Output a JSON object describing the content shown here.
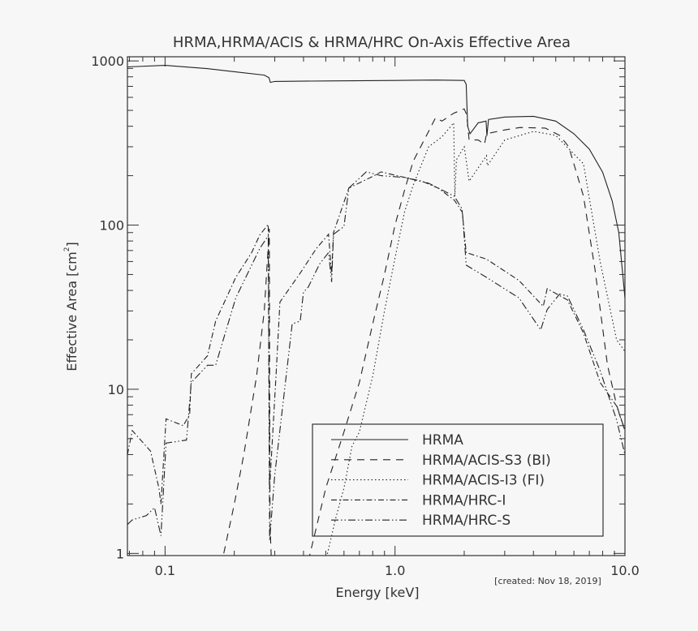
{
  "chart_data": {
    "type": "line",
    "title": "HRMA,HRMA/ACIS & HRMA/HRC On-Axis Effective Area",
    "xlabel": "Energy [keV]",
    "ylabel": "Effective Area [cm",
    "ylabel_sup": "2",
    "ylabel_end": "]",
    "xscale": "log",
    "yscale": "log",
    "xlim": [
      0.0686,
      10.0
    ],
    "ylim": [
      0.97,
      1060
    ],
    "xticks": [
      {
        "v": 0.1,
        "label": "0.1"
      },
      {
        "v": 1.0,
        "label": "1.0"
      },
      {
        "v": 10.0,
        "label": "10.0"
      }
    ],
    "yticks": [
      {
        "v": 1,
        "label": "1"
      },
      {
        "v": 10,
        "label": "10"
      },
      {
        "v": 100,
        "label": "100"
      },
      {
        "v": 1000,
        "label": "1000"
      }
    ],
    "annotation": "[created: Nov 18, 2019]",
    "legend_position": "bottom-right",
    "series": [
      {
        "name": "HRMA",
        "style": "solid",
        "points": [
          [
            0.0686,
            920
          ],
          [
            0.1,
            940
          ],
          [
            0.15,
            900
          ],
          [
            0.2,
            860
          ],
          [
            0.27,
            820
          ],
          [
            0.283,
            790
          ],
          [
            0.287,
            740
          ],
          [
            0.3,
            750
          ],
          [
            0.5,
            755
          ],
          [
            1.0,
            760
          ],
          [
            1.5,
            765
          ],
          [
            2.0,
            760
          ],
          [
            2.04,
            720
          ],
          [
            2.07,
            400
          ],
          [
            2.12,
            360
          ],
          [
            2.3,
            420
          ],
          [
            2.49,
            430
          ],
          [
            2.51,
            350
          ],
          [
            2.55,
            440
          ],
          [
            3.0,
            455
          ],
          [
            4.0,
            460
          ],
          [
            5.0,
            430
          ],
          [
            6.0,
            360
          ],
          [
            7.0,
            290
          ],
          [
            8.0,
            210
          ],
          [
            8.8,
            140
          ],
          [
            9.4,
            90
          ],
          [
            10,
            36
          ]
        ]
      },
      {
        "name": "HRMA/ACIS-S3 (BI)",
        "style": "dashed",
        "points": [
          [
            0.18,
            1
          ],
          [
            0.2,
            2.0
          ],
          [
            0.22,
            4
          ],
          [
            0.25,
            12
          ],
          [
            0.27,
            30
          ],
          [
            0.284,
            95
          ],
          [
            0.286,
            1.5
          ],
          [
            0.29,
            0.9
          ],
          null,
          [
            0.42,
            0.9
          ],
          [
            0.5,
            2.5
          ],
          [
            0.6,
            5.5
          ],
          [
            0.7,
            11
          ],
          [
            0.8,
            25
          ],
          [
            0.9,
            50
          ],
          [
            1.0,
            100
          ],
          [
            1.1,
            163
          ],
          [
            1.2,
            245
          ],
          [
            1.4,
            372
          ],
          [
            1.5,
            450
          ],
          [
            1.6,
            430
          ],
          [
            1.8,
            480
          ],
          [
            2.0,
            510
          ],
          [
            2.05,
            470
          ],
          [
            2.1,
            330
          ],
          [
            2.3,
            330
          ],
          [
            2.45,
            310
          ],
          [
            2.5,
            360
          ],
          [
            3.0,
            380
          ],
          [
            3.5,
            393
          ],
          [
            4.5,
            390
          ],
          [
            5.2,
            352
          ],
          [
            5.7,
            300
          ],
          [
            6.6,
            150
          ],
          [
            7.4,
            54
          ],
          [
            8.4,
            14
          ],
          [
            9.2,
            8
          ],
          [
            10,
            5.6
          ]
        ]
      },
      {
        "name": "HRMA/ACIS-I3 (FI)",
        "style": "dotted",
        "points": [
          [
            0.5,
            0.9
          ],
          [
            0.55,
            1.6
          ],
          [
            0.6,
            2.5
          ],
          [
            0.65,
            4.5
          ],
          [
            0.7,
            5.5
          ],
          [
            0.8,
            12
          ],
          [
            0.9,
            30
          ],
          [
            1.0,
            63
          ],
          [
            1.1,
            120
          ],
          [
            1.2,
            175
          ],
          [
            1.4,
            300
          ],
          [
            1.6,
            345
          ],
          [
            1.8,
            420
          ],
          [
            1.82,
            150
          ],
          [
            1.85,
            250
          ],
          [
            2.0,
            300
          ],
          [
            2.1,
            185
          ],
          [
            2.5,
            265
          ],
          [
            2.52,
            230
          ],
          [
            3.0,
            330
          ],
          [
            4.0,
            372
          ],
          [
            5.0,
            352
          ],
          [
            6.6,
            236
          ],
          [
            7.8,
            60
          ],
          [
            9.2,
            20
          ],
          [
            10,
            17
          ]
        ]
      },
      {
        "name": "HRMA/HRC-I",
        "style": "dashdot",
        "points": [
          [
            0.0686,
            4
          ],
          [
            0.072,
            5.6
          ],
          [
            0.0865,
            4.2
          ],
          [
            0.094,
            2.5
          ],
          [
            0.096,
            2.0
          ],
          [
            0.101,
            6.6
          ],
          [
            0.12,
            6.0
          ],
          [
            0.128,
            7.0
          ],
          [
            0.13,
            12.4
          ],
          [
            0.153,
            16
          ],
          [
            0.166,
            26
          ],
          [
            0.203,
            48
          ],
          [
            0.238,
            68
          ],
          [
            0.258,
            87
          ],
          [
            0.281,
            101
          ],
          [
            0.285,
            2.5
          ],
          [
            0.304,
            12.4
          ],
          [
            0.316,
            34
          ],
          [
            0.387,
            51
          ],
          [
            0.455,
            72
          ],
          [
            0.514,
            88
          ],
          [
            0.53,
            50
          ],
          [
            0.54,
            90
          ],
          [
            0.63,
            168
          ],
          [
            0.8,
            198
          ],
          [
            0.87,
            211
          ],
          [
            1.02,
            200
          ],
          [
            1.31,
            185
          ],
          [
            1.54,
            168
          ],
          [
            1.81,
            142
          ],
          [
            1.96,
            120
          ],
          [
            2.04,
            68
          ],
          [
            2.5,
            62
          ],
          [
            3.46,
            46
          ],
          [
            4.41,
            32
          ],
          [
            4.59,
            41
          ],
          [
            5.62,
            35
          ],
          [
            6.6,
            22
          ],
          [
            7.8,
            11
          ],
          [
            9.2,
            7.9
          ],
          [
            10,
            5.6
          ]
        ]
      },
      {
        "name": "HRMA/HRC-S",
        "style": "dashdotdot",
        "points": [
          [
            0.0686,
            1.5
          ],
          [
            0.072,
            1.6
          ],
          [
            0.083,
            1.7
          ],
          [
            0.09,
            1.9
          ],
          [
            0.096,
            1.28
          ],
          [
            0.101,
            4.7
          ],
          [
            0.124,
            4.9
          ],
          [
            0.13,
            11
          ],
          [
            0.153,
            14
          ],
          [
            0.166,
            14
          ],
          [
            0.203,
            36
          ],
          [
            0.258,
            72
          ],
          [
            0.281,
            86
          ],
          [
            0.285,
            1.2
          ],
          [
            0.3,
            3
          ],
          [
            0.357,
            25
          ],
          [
            0.387,
            26
          ],
          [
            0.4,
            39
          ],
          [
            0.42,
            42
          ],
          [
            0.47,
            58
          ],
          [
            0.514,
            68
          ],
          [
            0.53,
            45
          ],
          [
            0.54,
            88
          ],
          [
            0.6,
            98
          ],
          [
            0.63,
            168
          ],
          [
            0.75,
            211
          ],
          [
            0.87,
            200
          ],
          [
            1.1,
            195
          ],
          [
            1.4,
            180
          ],
          [
            1.81,
            150
          ],
          [
            1.96,
            125
          ],
          [
            2.04,
            57
          ],
          [
            2.5,
            48
          ],
          [
            3.46,
            36
          ],
          [
            4.3,
            23
          ],
          [
            4.59,
            30.6
          ],
          [
            5.2,
            38
          ],
          [
            5.62,
            37
          ],
          [
            6.6,
            23
          ],
          [
            7.8,
            13
          ],
          [
            9.2,
            6.5
          ],
          [
            10,
            4.0
          ]
        ]
      }
    ]
  }
}
